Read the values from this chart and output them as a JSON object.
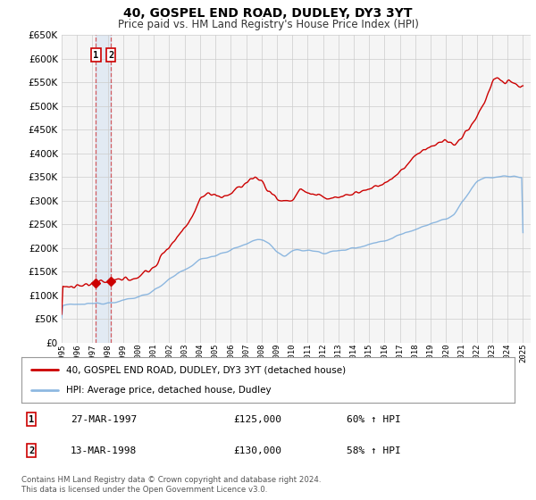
{
  "title": "40, GOSPEL END ROAD, DUDLEY, DY3 3YT",
  "subtitle": "Price paid vs. HM Land Registry's House Price Index (HPI)",
  "legend_line1": "40, GOSPEL END ROAD, DUDLEY, DY3 3YT (detached house)",
  "legend_line2": "HPI: Average price, detached house, Dudley",
  "sale1_date": "27-MAR-1997",
  "sale1_price": "£125,000",
  "sale1_hpi": "60% ↑ HPI",
  "sale1_year": 1997.23,
  "sale1_value": 125000,
  "sale2_date": "13-MAR-1998",
  "sale2_price": "£130,000",
  "sale2_hpi": "58% ↑ HPI",
  "sale2_year": 1998.2,
  "sale2_value": 130000,
  "red_color": "#cc0000",
  "blue_color": "#7aacdc",
  "shading_color": "#ddeeff",
  "grid_color": "#cccccc",
  "bg_color": "#f5f5f5",
  "copyright_text": "Contains HM Land Registry data © Crown copyright and database right 2024.\nThis data is licensed under the Open Government Licence v3.0.",
  "xmin": 1995.0,
  "xmax": 2025.5,
  "ymin": 0,
  "ymax": 650000
}
